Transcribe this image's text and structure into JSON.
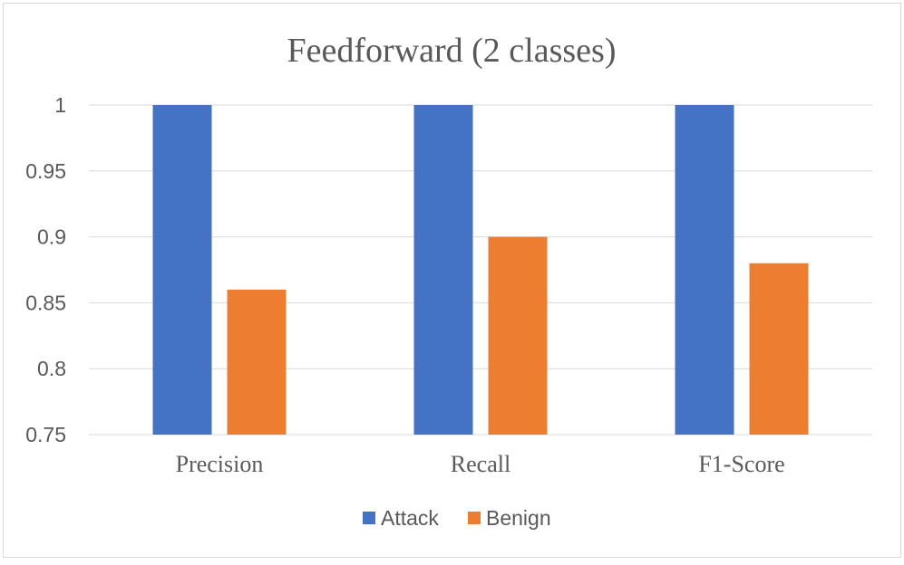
{
  "chart_data": {
    "type": "bar",
    "title": "Feedforward (2 classes)",
    "xlabel": "",
    "ylabel": "",
    "categories": [
      "Precision",
      "Recall",
      "F1-Score"
    ],
    "series": [
      {
        "name": "Attack",
        "values": [
          1,
          1,
          1
        ],
        "color": "#4472C4"
      },
      {
        "name": "Benign",
        "values": [
          0.86,
          0.9,
          0.88
        ],
        "color": "#ED7D31"
      }
    ],
    "ylim": [
      0.75,
      1
    ],
    "yticks": [
      "0.75",
      "0.8",
      "0.85",
      "0.9",
      "0.95",
      "1"
    ],
    "grid": true,
    "legend_position": "bottom",
    "colors": {
      "gridline": "#D9D9D9",
      "frame": "#D9D9D9",
      "text": "#595959"
    }
  }
}
